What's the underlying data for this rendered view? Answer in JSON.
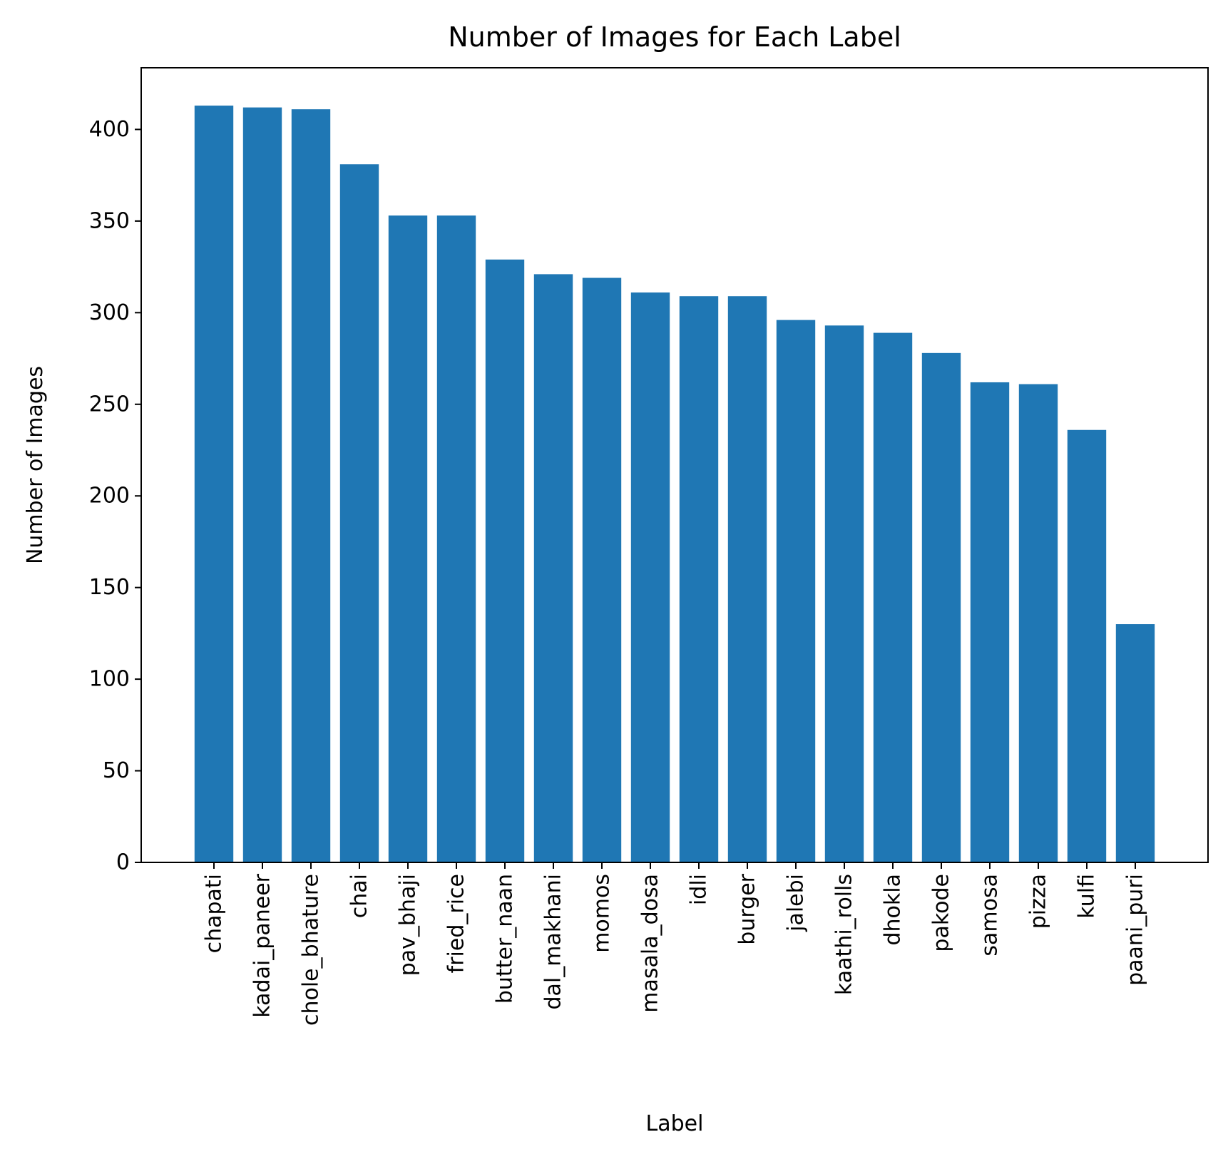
{
  "chart_data": {
    "type": "bar",
    "title": "Number of Images for Each Label",
    "xlabel": "Label",
    "ylabel": "Number of Images",
    "categories": [
      "chapati",
      "kadai_paneer",
      "chole_bhature",
      "chai",
      "pav_bhaji",
      "fried_rice",
      "butter_naan",
      "dal_makhani",
      "momos",
      "masala_dosa",
      "idli",
      "burger",
      "jalebi",
      "kaathi_rolls",
      "dhokla",
      "pakode",
      "samosa",
      "pizza",
      "kulfi",
      "paani_puri"
    ],
    "values": [
      413,
      412,
      411,
      381,
      353,
      353,
      329,
      321,
      319,
      311,
      309,
      309,
      296,
      293,
      289,
      278,
      262,
      261,
      236,
      130
    ],
    "ylim": [
      0,
      433.65
    ],
    "yticks": [
      0,
      50,
      100,
      150,
      200,
      250,
      300,
      350,
      400
    ],
    "grid": false,
    "bar_color": "#1f77b4"
  }
}
